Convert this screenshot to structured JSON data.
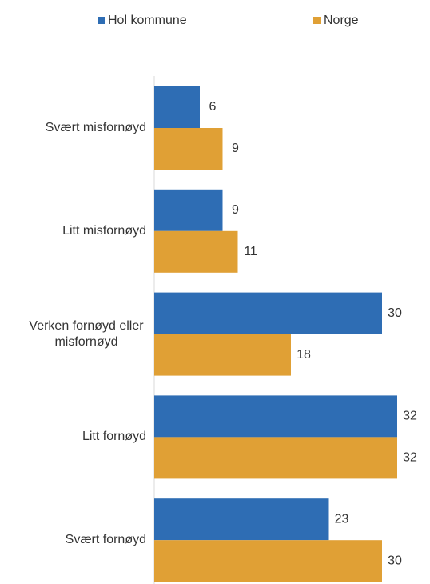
{
  "chart_data": {
    "type": "hbar",
    "categories": [
      "Svært misfornøyd",
      "Litt misfornøyd",
      "Verken fornøyd eller misfornøyd",
      "Litt fornøyd",
      "Svært fornøyd"
    ],
    "series": [
      {
        "name": "Hol kommune",
        "color": "#2e6db4",
        "values": [
          6,
          9,
          30,
          32,
          23
        ]
      },
      {
        "name": "Norge",
        "color": "#e0a035",
        "values": [
          9,
          11,
          18,
          32,
          30
        ]
      }
    ]
  }
}
